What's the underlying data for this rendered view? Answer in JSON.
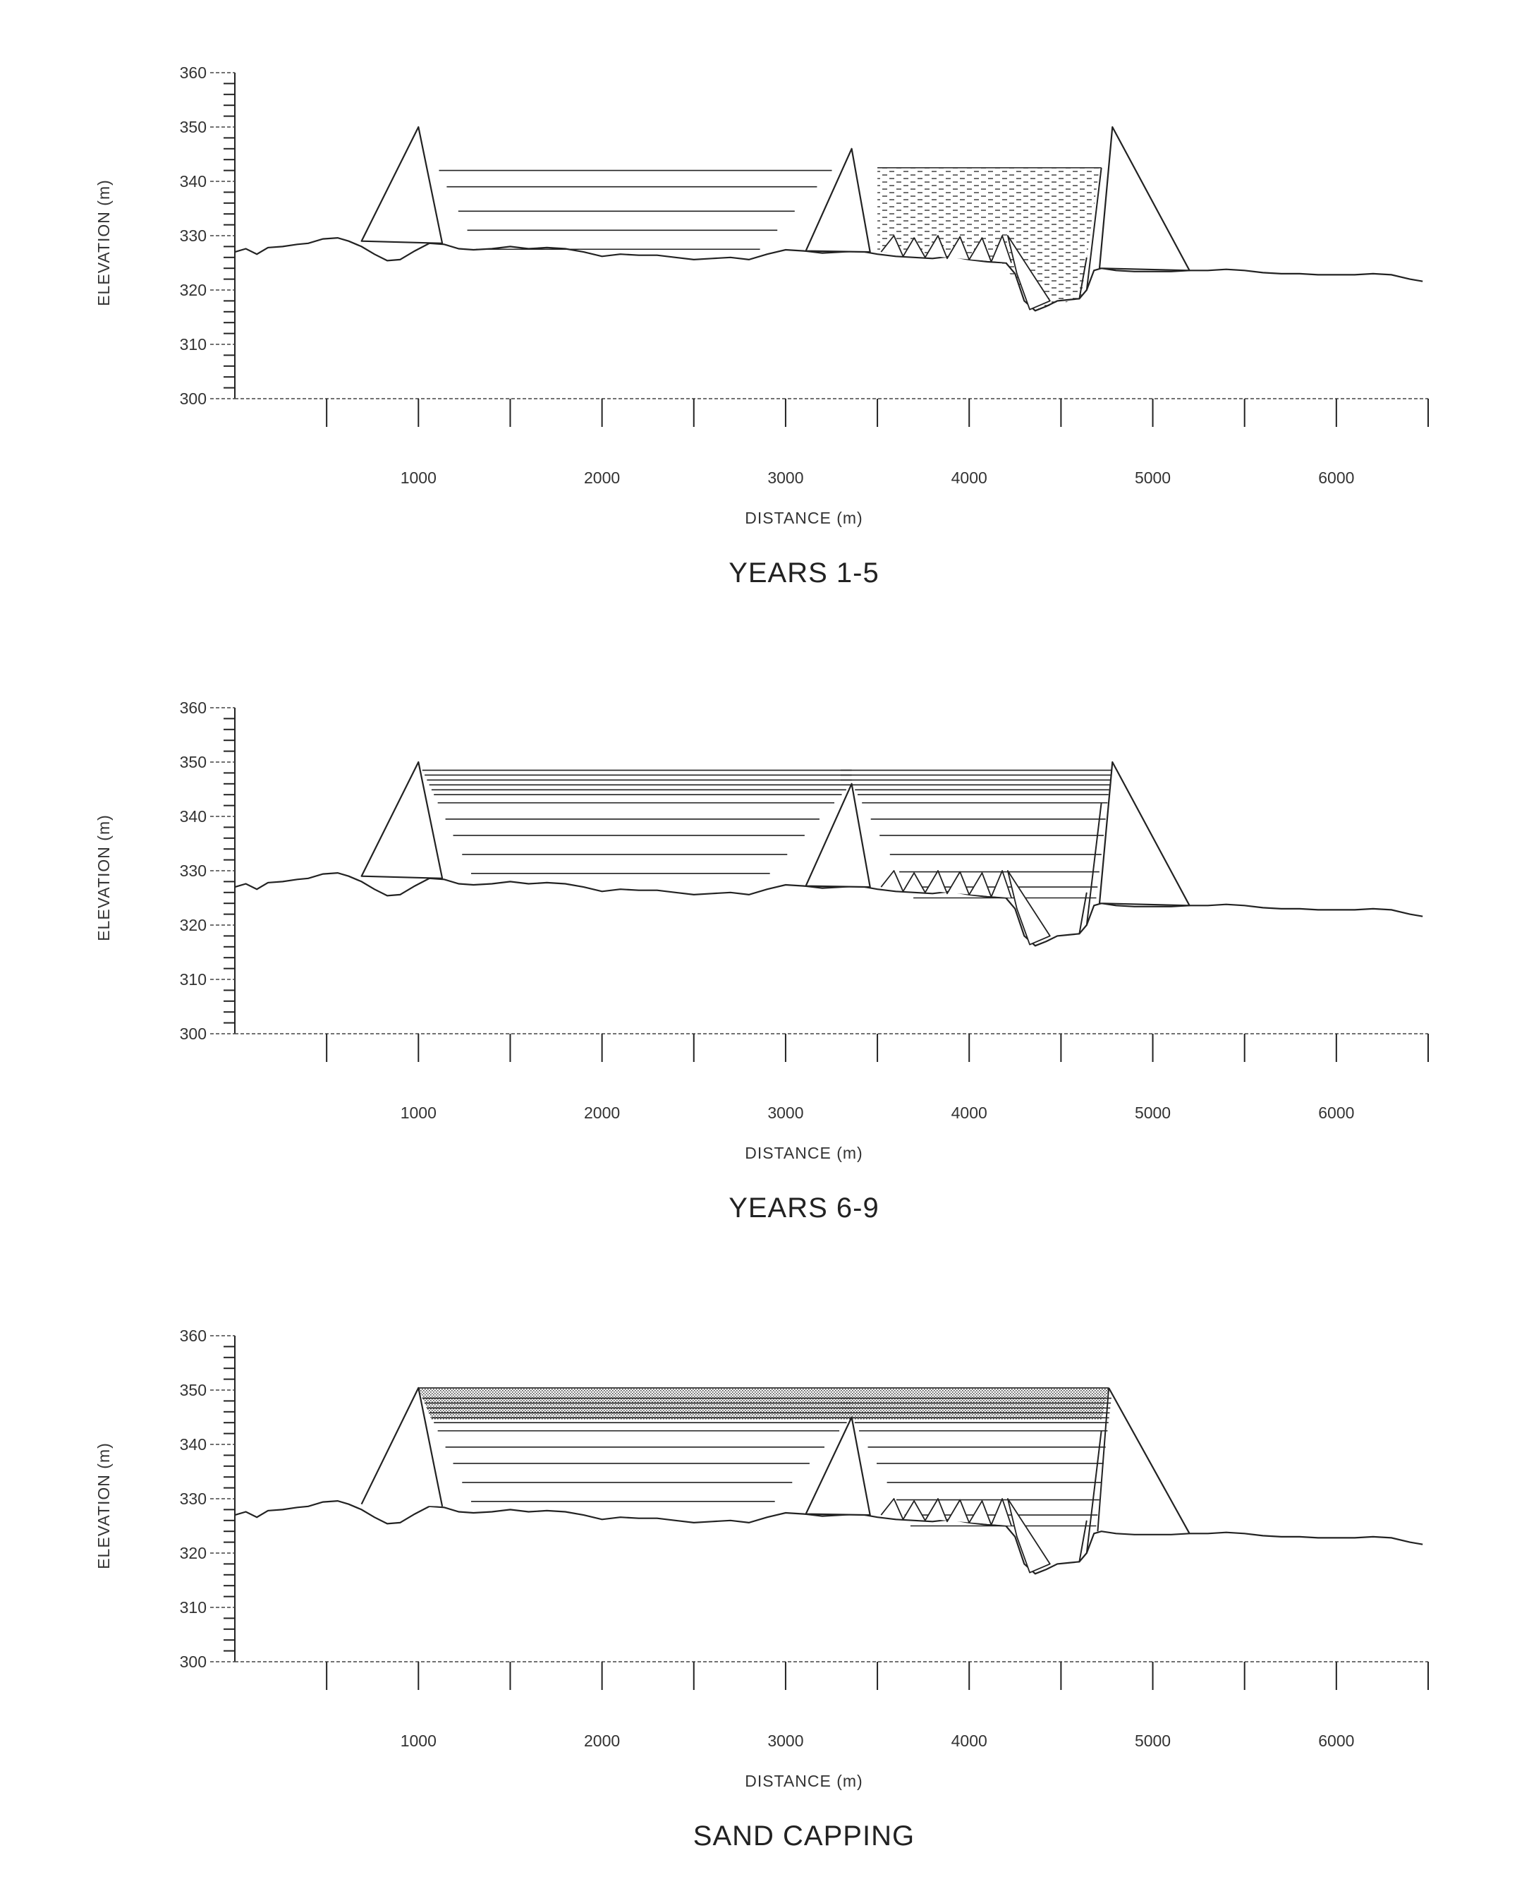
{
  "axes": {
    "y_label": "ELEVATION (m)",
    "x_label": "DISTANCE (m)",
    "y_ticks": [
      "360",
      "350",
      "340",
      "330",
      "320",
      "310",
      "300"
    ],
    "x_ticks": [
      "1000",
      "2000",
      "3000",
      "4000",
      "5000",
      "6000"
    ],
    "y_range": [
      300,
      360
    ],
    "x_range": [
      0,
      6500
    ]
  },
  "panels": [
    {
      "title": "YEARS 1-5",
      "west_layers": 5,
      "east_layers": 0,
      "east_water": true,
      "middle_dam_peak": 346,
      "east_dam": true,
      "cap": false
    },
    {
      "title": "YEARS 6-9",
      "west_layers": 11,
      "east_layers": 11,
      "east_water": false,
      "middle_dam_peak": 346,
      "east_dam": true,
      "cap": false
    },
    {
      "title": "SAND CAPPING",
      "west_layers": 11,
      "east_layers": 11,
      "east_water": false,
      "middle_dam_peak": 345,
      "east_dam": false,
      "cap": true
    }
  ]
}
